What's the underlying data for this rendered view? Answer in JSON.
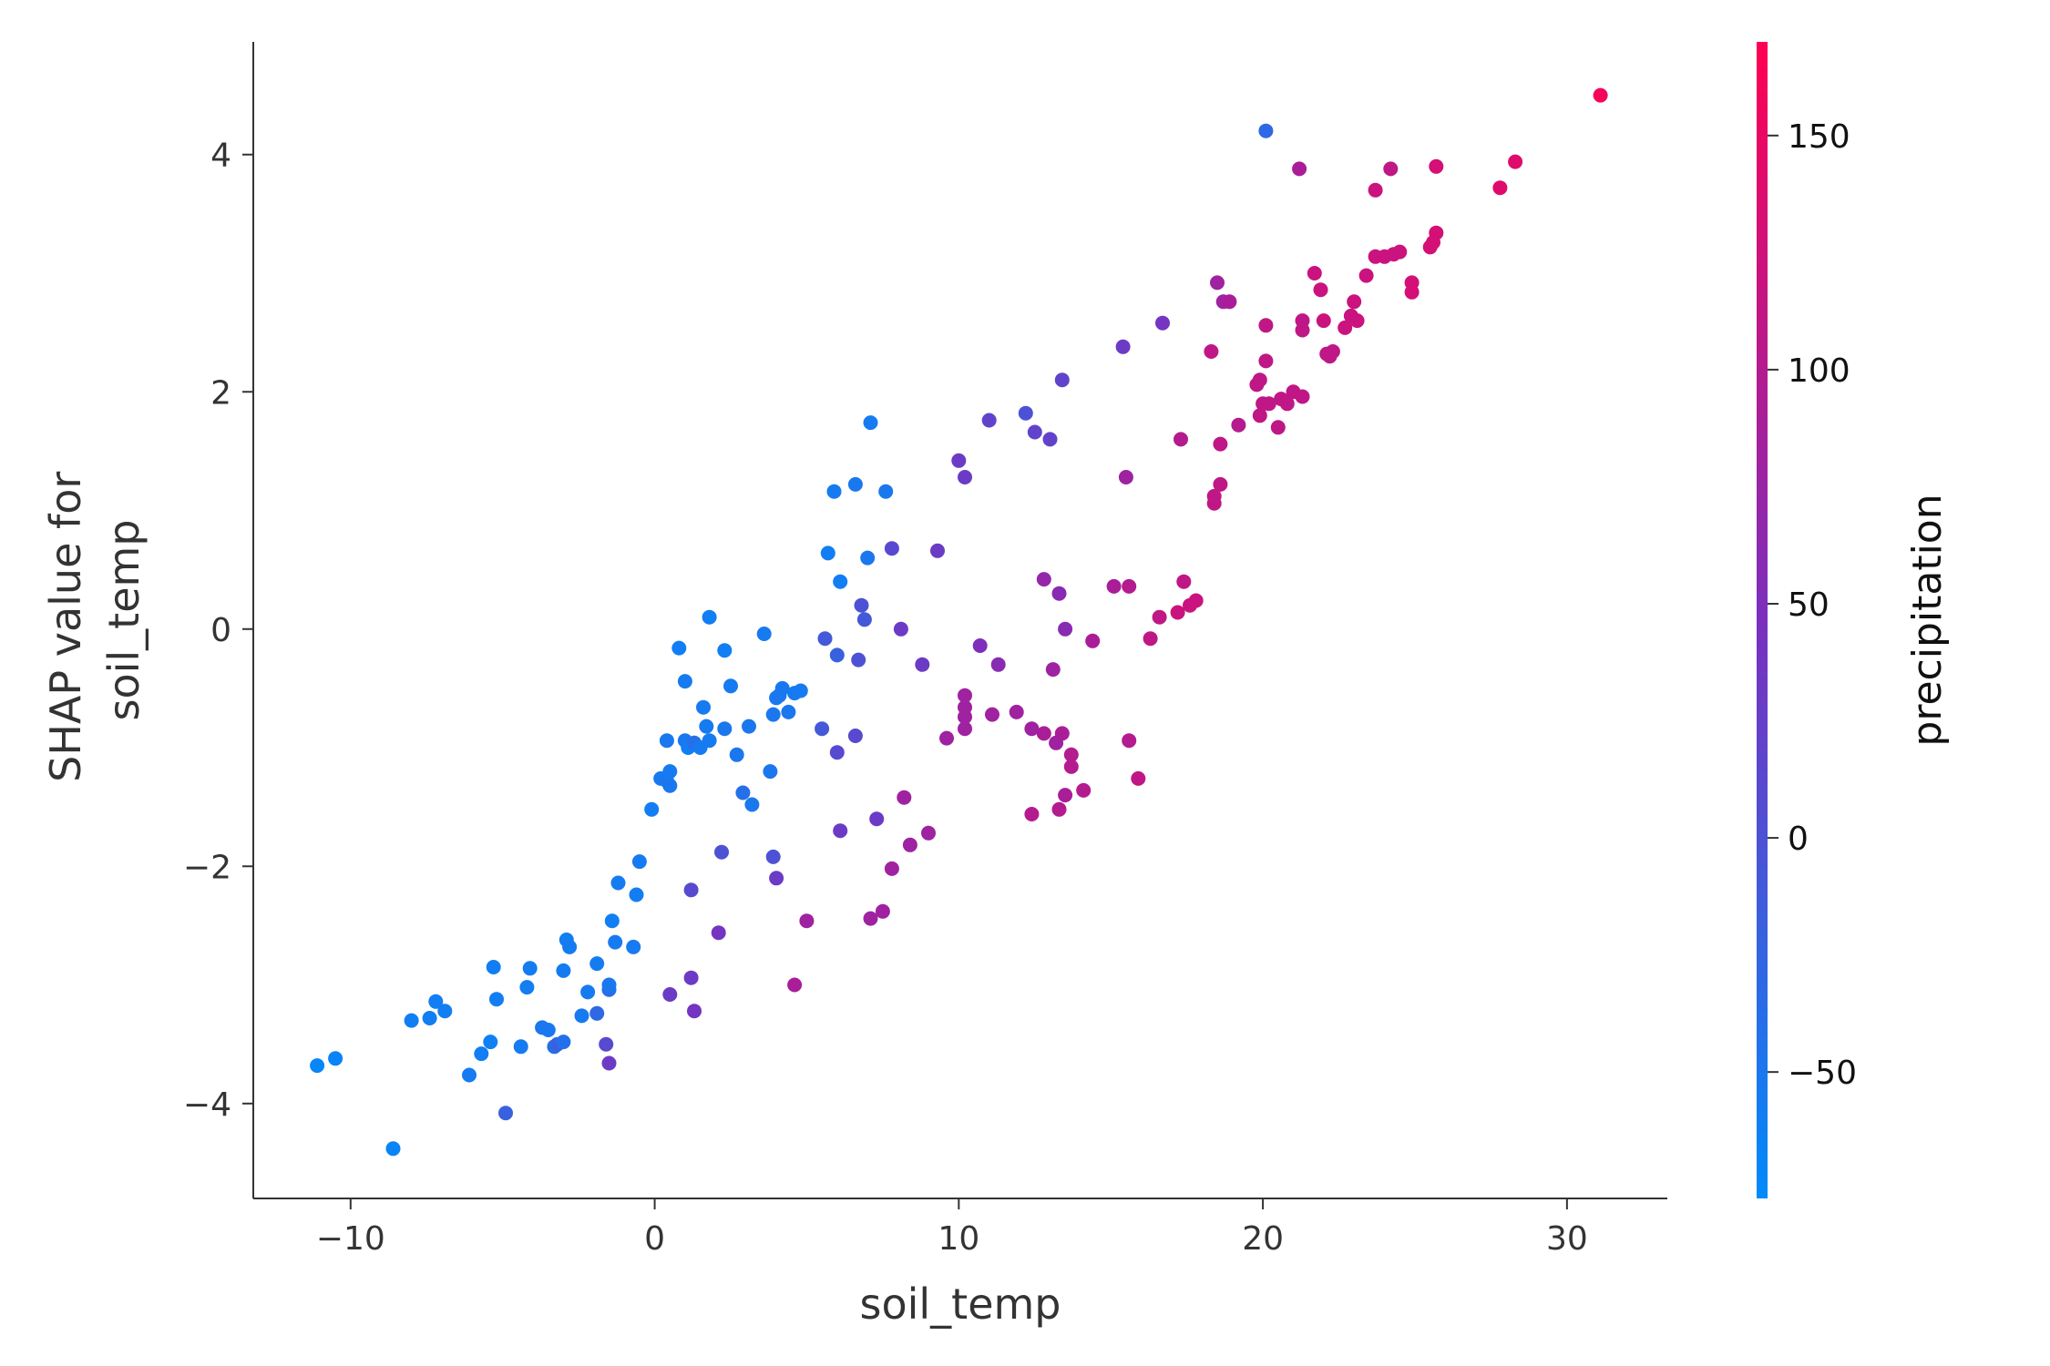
{
  "chart_data": {
    "type": "scatter",
    "title": "",
    "xlabel": "soil_temp",
    "ylabel_lines": [
      "SHAP value for",
      "soil_temp"
    ],
    "xlim": [
      -13.2,
      33.3
    ],
    "ylim": [
      -4.8,
      4.95
    ],
    "x_ticks": [
      {
        "value": -10,
        "label": "−10"
      },
      {
        "value": 0,
        "label": "0"
      },
      {
        "value": 10,
        "label": "10"
      },
      {
        "value": 20,
        "label": "20"
      },
      {
        "value": 30,
        "label": "30"
      }
    ],
    "y_ticks": [
      {
        "value": -4,
        "label": "−4"
      },
      {
        "value": -2,
        "label": "−2"
      },
      {
        "value": 0,
        "label": "0"
      },
      {
        "value": 2,
        "label": "2"
      },
      {
        "value": 4,
        "label": "4"
      }
    ],
    "colorbar": {
      "label": "precipitation",
      "range": [
        -77,
        170
      ],
      "ticks": [
        {
          "value": -50,
          "label": "−50"
        },
        {
          "value": 0,
          "label": "0"
        },
        {
          "value": 50,
          "label": "50"
        },
        {
          "value": 100,
          "label": "100"
        },
        {
          "value": 150,
          "label": "150"
        }
      ],
      "color_low": "#008bfb",
      "color_mid": "#7b2fbe",
      "color_high": "#ff0052"
    },
    "points": [
      [
        -11.1,
        -3.68,
        -70
      ],
      [
        -10.5,
        -3.62,
        -68
      ],
      [
        -8.6,
        -4.38,
        -68
      ],
      [
        -8.0,
        -3.3,
        -60
      ],
      [
        -7.4,
        -3.28,
        -60
      ],
      [
        -7.2,
        -3.14,
        -60
      ],
      [
        -6.9,
        -3.22,
        -58
      ],
      [
        -6.1,
        -3.76,
        -55
      ],
      [
        -5.7,
        -3.58,
        -60
      ],
      [
        -5.4,
        -3.48,
        -62
      ],
      [
        -5.3,
        -2.85,
        -60
      ],
      [
        -5.2,
        -3.12,
        -58
      ],
      [
        -4.9,
        -4.08,
        -20
      ],
      [
        -4.4,
        -3.52,
        -55
      ],
      [
        -4.2,
        -3.02,
        -58
      ],
      [
        -4.1,
        -2.86,
        -56
      ],
      [
        -3.7,
        -3.36,
        -50
      ],
      [
        -3.5,
        -3.38,
        -52
      ],
      [
        -3.3,
        -3.52,
        -40
      ],
      [
        -3.2,
        -3.5,
        -20
      ],
      [
        -3.0,
        -3.48,
        -42
      ],
      [
        -3.0,
        -2.88,
        -56
      ],
      [
        -2.9,
        -2.62,
        -58
      ],
      [
        -2.8,
        -2.68,
        -56
      ],
      [
        -2.4,
        -3.26,
        -55
      ],
      [
        -2.2,
        -3.06,
        -55
      ],
      [
        -1.9,
        -3.24,
        -30
      ],
      [
        -1.9,
        -2.82,
        -55
      ],
      [
        -1.6,
        -3.5,
        10
      ],
      [
        -1.5,
        -3.66,
        30
      ],
      [
        -1.5,
        -3.04,
        -40
      ],
      [
        -1.5,
        -3.0,
        -50
      ],
      [
        -1.4,
        -2.46,
        -60
      ],
      [
        -1.3,
        -2.64,
        -55
      ],
      [
        -1.2,
        -2.14,
        -55
      ],
      [
        -0.7,
        -2.68,
        -55
      ],
      [
        -0.6,
        -2.24,
        -58
      ],
      [
        -0.5,
        -1.96,
        -55
      ],
      [
        -0.1,
        -1.52,
        -58
      ],
      [
        0.2,
        -1.26,
        -55
      ],
      [
        0.4,
        -1.28,
        -50
      ],
      [
        0.4,
        -0.94,
        -50
      ],
      [
        0.5,
        -1.32,
        -50
      ],
      [
        0.5,
        -1.2,
        -55
      ],
      [
        0.5,
        -3.08,
        30
      ],
      [
        0.8,
        -0.16,
        -60
      ],
      [
        1.0,
        -0.94,
        -50
      ],
      [
        1.0,
        -0.44,
        -55
      ],
      [
        1.1,
        -1.0,
        -60
      ],
      [
        1.2,
        -2.94,
        30
      ],
      [
        1.2,
        -2.2,
        10
      ],
      [
        1.3,
        -3.22,
        40
      ],
      [
        1.3,
        -0.96,
        -40
      ],
      [
        1.5,
        -1.0,
        -55
      ],
      [
        1.6,
        -0.66,
        -55
      ],
      [
        1.7,
        -0.82,
        -55
      ],
      [
        1.8,
        0.1,
        -60
      ],
      [
        1.8,
        -0.94,
        -55
      ],
      [
        2.1,
        -2.56,
        40
      ],
      [
        2.2,
        -1.88,
        0
      ],
      [
        2.3,
        -0.84,
        -50
      ],
      [
        2.3,
        -0.18,
        -60
      ],
      [
        2.5,
        -0.48,
        -55
      ],
      [
        2.7,
        -1.06,
        -50
      ],
      [
        2.9,
        -1.38,
        -40
      ],
      [
        3.1,
        -0.82,
        -50
      ],
      [
        3.2,
        -1.48,
        -50
      ],
      [
        3.6,
        -0.04,
        -55
      ],
      [
        3.8,
        -1.2,
        -50
      ],
      [
        3.9,
        -1.92,
        0
      ],
      [
        3.9,
        -0.72,
        -50
      ],
      [
        4.0,
        -2.1,
        30
      ],
      [
        4.0,
        -0.58,
        -50
      ],
      [
        4.1,
        -0.56,
        -50
      ],
      [
        4.2,
        -0.5,
        -52
      ],
      [
        4.4,
        -0.7,
        -50
      ],
      [
        4.6,
        -0.54,
        -55
      ],
      [
        4.6,
        -3.0,
        90
      ],
      [
        4.8,
        -0.52,
        -55
      ],
      [
        5.0,
        -2.46,
        80
      ],
      [
        5.5,
        -0.84,
        -10
      ],
      [
        5.6,
        -0.08,
        -10
      ],
      [
        5.7,
        0.64,
        -60
      ],
      [
        5.9,
        1.16,
        -55
      ],
      [
        6.0,
        -1.04,
        10
      ],
      [
        6.0,
        -0.22,
        -20
      ],
      [
        6.1,
        -1.7,
        30
      ],
      [
        6.1,
        0.4,
        -60
      ],
      [
        6.6,
        1.22,
        -50
      ],
      [
        6.6,
        -0.9,
        10
      ],
      [
        6.7,
        -0.26,
        0
      ],
      [
        6.8,
        0.2,
        0
      ],
      [
        6.9,
        0.08,
        -10
      ],
      [
        7.0,
        0.6,
        -50
      ],
      [
        7.1,
        1.74,
        -55
      ],
      [
        7.1,
        -2.44,
        80
      ],
      [
        7.3,
        -1.6,
        30
      ],
      [
        7.5,
        -2.38,
        80
      ],
      [
        7.6,
        1.16,
        -50
      ],
      [
        7.8,
        -2.02,
        80
      ],
      [
        7.8,
        0.68,
        10
      ],
      [
        8.1,
        0.0,
        30
      ],
      [
        8.2,
        -1.42,
        80
      ],
      [
        8.4,
        -1.82,
        80
      ],
      [
        8.8,
        -0.3,
        30
      ],
      [
        9.0,
        -1.72,
        80
      ],
      [
        9.3,
        0.66,
        30
      ],
      [
        9.6,
        -0.92,
        80
      ],
      [
        10.0,
        1.42,
        30
      ],
      [
        10.2,
        1.28,
        30
      ],
      [
        10.2,
        -0.56,
        80
      ],
      [
        10.2,
        -0.66,
        80
      ],
      [
        10.2,
        -0.74,
        80
      ],
      [
        10.2,
        -0.84,
        80
      ],
      [
        10.7,
        -0.14,
        50
      ],
      [
        11.0,
        1.76,
        20
      ],
      [
        11.1,
        -0.72,
        80
      ],
      [
        11.3,
        -0.3,
        60
      ],
      [
        11.9,
        -0.7,
        80
      ],
      [
        12.2,
        1.82,
        0
      ],
      [
        12.4,
        -1.56,
        100
      ],
      [
        12.4,
        -0.84,
        80
      ],
      [
        12.5,
        1.66,
        20
      ],
      [
        12.8,
        0.42,
        70
      ],
      [
        12.8,
        -0.88,
        90
      ],
      [
        13.0,
        1.6,
        20
      ],
      [
        13.1,
        -0.34,
        80
      ],
      [
        13.2,
        -0.96,
        80
      ],
      [
        13.3,
        -1.52,
        100
      ],
      [
        13.3,
        0.3,
        60
      ],
      [
        13.4,
        2.1,
        20
      ],
      [
        13.4,
        -0.88,
        90
      ],
      [
        13.5,
        0.0,
        60
      ],
      [
        13.5,
        -1.4,
        90
      ],
      [
        13.7,
        -1.06,
        100
      ],
      [
        13.7,
        -1.16,
        100
      ],
      [
        14.1,
        -1.36,
        100
      ],
      [
        14.4,
        -0.1,
        90
      ],
      [
        15.1,
        0.36,
        90
      ],
      [
        15.4,
        2.38,
        30
      ],
      [
        15.5,
        1.28,
        80
      ],
      [
        15.6,
        0.36,
        100
      ],
      [
        15.6,
        -0.94,
        100
      ],
      [
        15.9,
        -1.26,
        110
      ],
      [
        16.3,
        -0.08,
        110
      ],
      [
        16.6,
        0.1,
        110
      ],
      [
        16.7,
        2.58,
        40
      ],
      [
        17.2,
        0.14,
        120
      ],
      [
        17.3,
        1.6,
        100
      ],
      [
        17.4,
        0.4,
        110
      ],
      [
        17.6,
        0.2,
        120
      ],
      [
        17.8,
        0.24,
        120
      ],
      [
        18.3,
        2.34,
        110
      ],
      [
        18.4,
        1.06,
        110
      ],
      [
        18.4,
        1.12,
        110
      ],
      [
        18.5,
        2.92,
        80
      ],
      [
        18.6,
        1.22,
        110
      ],
      [
        18.6,
        1.56,
        110
      ],
      [
        18.7,
        2.76,
        80
      ],
      [
        18.9,
        2.76,
        90
      ],
      [
        19.2,
        1.72,
        100
      ],
      [
        19.8,
        2.06,
        110
      ],
      [
        19.9,
        1.8,
        110
      ],
      [
        19.9,
        2.1,
        110
      ],
      [
        20.0,
        1.9,
        110
      ],
      [
        20.1,
        2.56,
        110
      ],
      [
        20.1,
        2.26,
        110
      ],
      [
        20.1,
        4.2,
        -30
      ],
      [
        20.2,
        1.9,
        110
      ],
      [
        20.5,
        1.7,
        110
      ],
      [
        20.6,
        1.94,
        110
      ],
      [
        20.8,
        1.9,
        110
      ],
      [
        21.0,
        2.0,
        110
      ],
      [
        21.2,
        3.88,
        90
      ],
      [
        21.3,
        2.52,
        110
      ],
      [
        21.3,
        1.96,
        110
      ],
      [
        21.3,
        2.6,
        110
      ],
      [
        21.7,
        3.0,
        120
      ],
      [
        21.9,
        2.86,
        120
      ],
      [
        22.0,
        2.6,
        120
      ],
      [
        22.1,
        2.32,
        110
      ],
      [
        22.2,
        2.3,
        110
      ],
      [
        22.3,
        2.34,
        110
      ],
      [
        22.7,
        2.54,
        120
      ],
      [
        22.9,
        2.64,
        120
      ],
      [
        23.0,
        2.76,
        120
      ],
      [
        23.1,
        2.6,
        120
      ],
      [
        23.4,
        2.98,
        120
      ],
      [
        23.7,
        3.7,
        120
      ],
      [
        23.7,
        3.14,
        120
      ],
      [
        24.0,
        3.14,
        120
      ],
      [
        24.2,
        3.88,
        110
      ],
      [
        24.3,
        3.16,
        120
      ],
      [
        24.5,
        3.18,
        120
      ],
      [
        24.9,
        2.92,
        130
      ],
      [
        24.9,
        2.84,
        130
      ],
      [
        25.5,
        3.22,
        130
      ],
      [
        25.6,
        3.26,
        130
      ],
      [
        25.7,
        3.34,
        130
      ],
      [
        25.7,
        3.9,
        130
      ],
      [
        27.8,
        3.72,
        140
      ],
      [
        28.3,
        3.94,
        140
      ],
      [
        31.1,
        4.5,
        160
      ]
    ]
  }
}
